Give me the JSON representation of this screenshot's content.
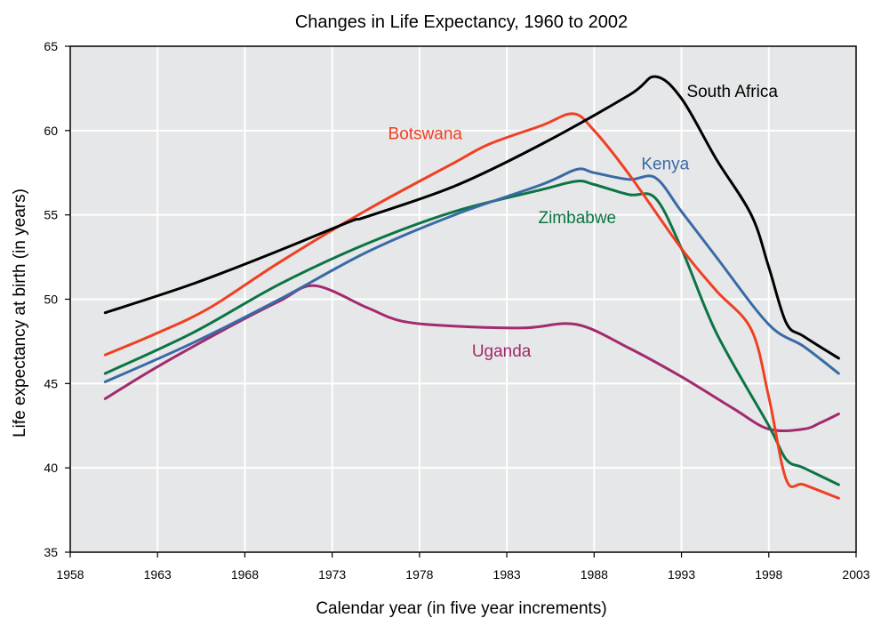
{
  "chart_data": {
    "type": "line",
    "title": "Changes in Life Expectancy, 1960 to 2002",
    "xlabel": "Calendar year (in five year increments)",
    "ylabel": "Life expectancy at birth (in years)",
    "xlim": [
      1958,
      2003
    ],
    "ylim": [
      35,
      65
    ],
    "x_ticks": [
      1958,
      1963,
      1968,
      1973,
      1978,
      1983,
      1988,
      1993,
      1998,
      2003
    ],
    "y_ticks": [
      35,
      40,
      45,
      50,
      55,
      60,
      65
    ],
    "grid": true,
    "background": "#e6e7e8",
    "series": [
      {
        "name": "South Africa",
        "color": "#000000",
        "points": [
          [
            1960,
            49.2
          ],
          [
            1965,
            50.9
          ],
          [
            1970,
            52.9
          ],
          [
            1974,
            54.6
          ],
          [
            1975,
            54.9
          ],
          [
            1980,
            56.7
          ],
          [
            1985,
            59.2
          ],
          [
            1990,
            62.1
          ],
          [
            1991.5,
            63.2
          ],
          [
            1993,
            61.9
          ],
          [
            1995,
            58.3
          ],
          [
            1997,
            55.0
          ],
          [
            1998,
            51.9
          ],
          [
            1999,
            48.6
          ],
          [
            2000,
            47.8
          ],
          [
            2002,
            46.5
          ]
        ],
        "label_text": "South Africa",
        "label_at": [
          1993.3,
          62.0
        ]
      },
      {
        "name": "Botswana",
        "color": "#ef4023",
        "points": [
          [
            1960,
            46.7
          ],
          [
            1963,
            48.0
          ],
          [
            1966,
            49.5
          ],
          [
            1970,
            52.2
          ],
          [
            1975,
            55.3
          ],
          [
            1980,
            58.1
          ],
          [
            1982,
            59.2
          ],
          [
            1985,
            60.3
          ],
          [
            1986.8,
            61.0
          ],
          [
            1988,
            60.0
          ],
          [
            1990,
            57.4
          ],
          [
            1993,
            53.0
          ],
          [
            1995,
            50.5
          ],
          [
            1997,
            48.2
          ],
          [
            1998,
            44.2
          ],
          [
            1999,
            39.3
          ],
          [
            2000,
            39.0
          ],
          [
            2002,
            38.2
          ]
        ],
        "label_text": "Botswana",
        "label_at": [
          1976.2,
          59.5
        ]
      },
      {
        "name": "Kenya",
        "color": "#3a6aa6",
        "points": [
          [
            1960,
            45.1
          ],
          [
            1965,
            47.4
          ],
          [
            1970,
            50.0
          ],
          [
            1975,
            52.8
          ],
          [
            1980,
            55.0
          ],
          [
            1985,
            56.8
          ],
          [
            1987,
            57.7
          ],
          [
            1988,
            57.5
          ],
          [
            1990,
            57.1
          ],
          [
            1991.5,
            57.2
          ],
          [
            1993,
            55.2
          ],
          [
            1995,
            52.5
          ],
          [
            1998,
            48.5
          ],
          [
            2000,
            47.2
          ],
          [
            2002,
            45.6
          ]
        ],
        "label_text": "Kenya",
        "label_at": [
          1990.7,
          57.7
        ]
      },
      {
        "name": "Zimbabwe",
        "color": "#0c7445",
        "points": [
          [
            1960,
            45.6
          ],
          [
            1965,
            48.0
          ],
          [
            1970,
            50.9
          ],
          [
            1975,
            53.3
          ],
          [
            1980,
            55.2
          ],
          [
            1985,
            56.5
          ],
          [
            1987,
            57.0
          ],
          [
            1988,
            56.8
          ],
          [
            1990,
            56.2
          ],
          [
            1991.5,
            56.0
          ],
          [
            1993,
            53.0
          ],
          [
            1995,
            48.0
          ],
          [
            1998,
            42.5
          ],
          [
            1999,
            40.5
          ],
          [
            2000,
            40.0
          ],
          [
            2002,
            39.0
          ]
        ],
        "label_text": "Zimbabwe",
        "label_at": [
          1984.8,
          54.5
        ]
      },
      {
        "name": "Uganda",
        "color": "#a22a6e",
        "points": [
          [
            1960,
            44.1
          ],
          [
            1963,
            46.0
          ],
          [
            1967,
            48.3
          ],
          [
            1970,
            49.9
          ],
          [
            1972,
            50.8
          ],
          [
            1975,
            49.5
          ],
          [
            1977,
            48.7
          ],
          [
            1980,
            48.4
          ],
          [
            1984,
            48.3
          ],
          [
            1987,
            48.5
          ],
          [
            1990,
            47.1
          ],
          [
            1993,
            45.4
          ],
          [
            1996,
            43.5
          ],
          [
            1998,
            42.3
          ],
          [
            2000,
            42.3
          ],
          [
            2001,
            42.7
          ],
          [
            2002,
            43.2
          ]
        ],
        "label_text": "Uganda",
        "label_at": [
          1981.0,
          46.6
        ]
      }
    ]
  }
}
